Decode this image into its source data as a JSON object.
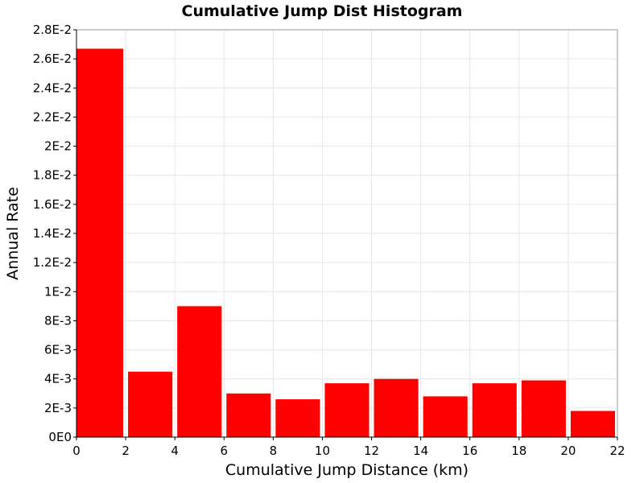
{
  "chart_data": {
    "type": "bar",
    "title": "Cumulative Jump Dist Histogram",
    "xlabel": "Cumulative Jump Distance (km)",
    "ylabel": "Annual Rate",
    "xlim": [
      0,
      22
    ],
    "ylim": [
      0,
      0.028
    ],
    "grid": true,
    "legend": "none",
    "bar_color": "#ff0000",
    "x_ticks": [
      0,
      2,
      4,
      6,
      8,
      10,
      12,
      14,
      16,
      18,
      20,
      22
    ],
    "x_tick_labels": [
      "0",
      "2",
      "4",
      "6",
      "8",
      "10",
      "12",
      "14",
      "16",
      "18",
      "20",
      "22"
    ],
    "y_ticks": [
      0,
      0.002,
      0.004,
      0.006,
      0.008,
      0.01,
      0.012,
      0.014,
      0.016,
      0.018,
      0.02,
      0.022,
      0.024,
      0.026,
      0.028
    ],
    "y_tick_labels": [
      "0E0",
      "2E-3",
      "4E-3",
      "6E-3",
      "8E-3",
      "1E-2",
      "1.2E-2",
      "1.4E-2",
      "1.6E-2",
      "1.8E-2",
      "2E-2",
      "2.2E-2",
      "2.4E-2",
      "2.6E-2",
      "2.8E-2"
    ],
    "bin_width": 2,
    "bins": [
      {
        "x_start": 0,
        "x_end": 2,
        "value": 0.0267
      },
      {
        "x_start": 2,
        "x_end": 4,
        "value": 0.0045
      },
      {
        "x_start": 4,
        "x_end": 6,
        "value": 0.009
      },
      {
        "x_start": 6,
        "x_end": 8,
        "value": 0.003
      },
      {
        "x_start": 8,
        "x_end": 10,
        "value": 0.0026
      },
      {
        "x_start": 10,
        "x_end": 12,
        "value": 0.0037
      },
      {
        "x_start": 12,
        "x_end": 14,
        "value": 0.004
      },
      {
        "x_start": 14,
        "x_end": 16,
        "value": 0.0028
      },
      {
        "x_start": 16,
        "x_end": 18,
        "value": 0.0037
      },
      {
        "x_start": 18,
        "x_end": 20,
        "value": 0.0039
      },
      {
        "x_start": 20,
        "x_end": 22,
        "value": 0.0018
      }
    ]
  }
}
